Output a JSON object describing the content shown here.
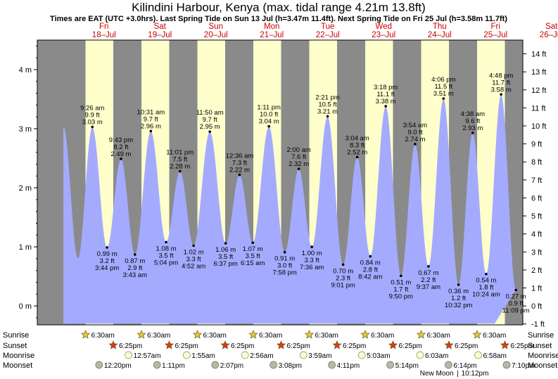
{
  "chart_data": {
    "type": "area",
    "title": "Kilindini Harbour, Kenya (max. tidal range 4.21m 13.8ft)",
    "subtitle": "Times are EAT (UTC +3.0hrs). Last Spring Tide on Sun 13 Jul (h=3.47m 11.4ft). Next Spring Tide on Fri 25 Jul (h=3.58m 11.7ft)",
    "days": [
      {
        "weekday": "Fri",
        "date": "18–Jul"
      },
      {
        "weekday": "Sat",
        "date": "19–Jul"
      },
      {
        "weekday": "Sun",
        "date": "20–Jul"
      },
      {
        "weekday": "Mon",
        "date": "21–Jul"
      },
      {
        "weekday": "Tue",
        "date": "22–Jul"
      },
      {
        "weekday": "Wed",
        "date": "23–Jul"
      },
      {
        "weekday": "Thu",
        "date": "24–Jul"
      },
      {
        "weekday": "Fri",
        "date": "25–Jul"
      },
      {
        "weekday": "Sat",
        "date": "26–Jul"
      }
    ],
    "ylim_m": [
      -0.32,
      4.5
    ],
    "y_left_ticks": [
      {
        "value": 0,
        "label": "0 m"
      },
      {
        "value": 1,
        "label": "1 m"
      },
      {
        "value": 2,
        "label": "2 m"
      },
      {
        "value": 3,
        "label": "3 m"
      },
      {
        "value": 4,
        "label": "4 m"
      }
    ],
    "y_right_ticks": [
      {
        "value": -1,
        "label": "-1 ft"
      },
      {
        "value": 0,
        "label": "0 ft"
      },
      {
        "value": 1,
        "label": "1 ft"
      },
      {
        "value": 2,
        "label": "2 ft"
      },
      {
        "value": 3,
        "label": "3 ft"
      },
      {
        "value": 4,
        "label": "4 ft"
      },
      {
        "value": 5,
        "label": "5 ft"
      },
      {
        "value": 6,
        "label": "6 ft"
      },
      {
        "value": 7,
        "label": "7 ft"
      },
      {
        "value": 8,
        "label": "8 ft"
      },
      {
        "value": 9,
        "label": "9 ft"
      },
      {
        "value": 10,
        "label": "10 ft"
      },
      {
        "value": 11,
        "label": "11 ft"
      },
      {
        "value": 12,
        "label": "12 ft"
      },
      {
        "value": 13,
        "label": "13 ft"
      },
      {
        "value": 14,
        "label": "14 ft"
      }
    ],
    "tides": [
      {
        "day": 0,
        "hour": 9.43,
        "type": "high",
        "time": "9:26 am",
        "ft": "9.9 ft",
        "m": 3.03,
        "m_label": "3.03 m"
      },
      {
        "day": 0,
        "hour": 15.73,
        "type": "low",
        "time": "3:44 pm",
        "ft": "3.2 ft",
        "m": 0.99,
        "m_label": "0.99 m"
      },
      {
        "day": 0,
        "hour": 21.72,
        "type": "high",
        "time": "9:43 pm",
        "ft": "8.2 ft",
        "m": 2.49,
        "m_label": "2.49 m"
      },
      {
        "day": 1,
        "hour": 3.72,
        "type": "low",
        "time": "3:43 am",
        "ft": "2.9 ft",
        "m": 0.87,
        "m_label": "0.87 m"
      },
      {
        "day": 1,
        "hour": 10.52,
        "type": "high",
        "time": "10:31 am",
        "ft": "9.7 ft",
        "m": 2.96,
        "m_label": "2.96 m"
      },
      {
        "day": 1,
        "hour": 17.07,
        "type": "low",
        "time": "5:04 pm",
        "ft": "3.5 ft",
        "m": 1.08,
        "m_label": "1.08 m"
      },
      {
        "day": 1,
        "hour": 23.02,
        "type": "high",
        "time": "11:01 pm",
        "ft": "7.5 ft",
        "m": 2.28,
        "m_label": "2.28 m"
      },
      {
        "day": 2,
        "hour": 4.87,
        "type": "low",
        "time": "4:52 am",
        "ft": "3.3 ft",
        "m": 1.02,
        "m_label": "1.02 m"
      },
      {
        "day": 2,
        "hour": 11.83,
        "type": "high",
        "time": "11:50 am",
        "ft": "9.7 ft",
        "m": 2.95,
        "m_label": "2.95 m"
      },
      {
        "day": 2,
        "hour": 18.62,
        "type": "low",
        "time": "6:37 pm",
        "ft": "3.5 ft",
        "m": 1.06,
        "m_label": "1.06 m"
      },
      {
        "day": 3,
        "hour": 0.6,
        "type": "high",
        "time": "12:36 am",
        "ft": "7.3 ft",
        "m": 2.22,
        "m_label": "2.22 m"
      },
      {
        "day": 3,
        "hour": 6.25,
        "type": "low",
        "time": "6:15 am",
        "ft": "3.5 ft",
        "m": 1.07,
        "m_label": "1.07 m"
      },
      {
        "day": 3,
        "hour": 13.18,
        "type": "high",
        "time": "1:11 pm",
        "ft": "10.0 ft",
        "m": 3.04,
        "m_label": "3.04 m"
      },
      {
        "day": 3,
        "hour": 19.97,
        "type": "low",
        "time": "7:58 pm",
        "ft": "3.0 ft",
        "m": 0.91,
        "m_label": "0.91 m"
      },
      {
        "day": 4,
        "hour": 2.0,
        "type": "high",
        "time": "2:00 am",
        "ft": "7.6 ft",
        "m": 2.32,
        "m_label": "2.32 m"
      },
      {
        "day": 4,
        "hour": 7.6,
        "type": "low",
        "time": "7:36 am",
        "ft": "3.3 ft",
        "m": 1.0,
        "m_label": "1.00 m"
      },
      {
        "day": 4,
        "hour": 14.35,
        "type": "high",
        "time": "2:21 pm",
        "ft": "10.5 ft",
        "m": 3.21,
        "m_label": "3.21 m"
      },
      {
        "day": 4,
        "hour": 21.02,
        "type": "low",
        "time": "9:01 pm",
        "ft": "2.3 ft",
        "m": 0.7,
        "m_label": "0.70 m"
      },
      {
        "day": 5,
        "hour": 3.07,
        "type": "high",
        "time": "3:04 am",
        "ft": "8.3 ft",
        "m": 2.52,
        "m_label": "2.52 m"
      },
      {
        "day": 5,
        "hour": 8.7,
        "type": "low",
        "time": "8:42 am",
        "ft": "2.8 ft",
        "m": 0.84,
        "m_label": "0.84 m"
      },
      {
        "day": 5,
        "hour": 15.3,
        "type": "high",
        "time": "3:18 pm",
        "ft": "11.1 ft",
        "m": 3.38,
        "m_label": "3.38 m"
      },
      {
        "day": 5,
        "hour": 21.83,
        "type": "low",
        "time": "9:50 pm",
        "ft": "1.7 ft",
        "m": 0.51,
        "m_label": "0.51 m"
      },
      {
        "day": 6,
        "hour": 3.9,
        "type": "high",
        "time": "3:54 am",
        "ft": "9.0 ft",
        "m": 2.74,
        "m_label": "2.74 m"
      },
      {
        "day": 6,
        "hour": 9.62,
        "type": "low",
        "time": "9:37 am",
        "ft": "2.2 ft",
        "m": 0.67,
        "m_label": "0.67 m"
      },
      {
        "day": 6,
        "hour": 16.1,
        "type": "high",
        "time": "4:06 pm",
        "ft": "11.5 ft",
        "m": 3.51,
        "m_label": "3.51 m"
      },
      {
        "day": 6,
        "hour": 22.53,
        "type": "low",
        "time": "10:32 pm",
        "ft": "1.2 ft",
        "m": 0.36,
        "m_label": "0.36 m"
      },
      {
        "day": 7,
        "hour": 4.63,
        "type": "high",
        "time": "4:38 am",
        "ft": "9.6 ft",
        "m": 2.93,
        "m_label": "2.93 m"
      },
      {
        "day": 7,
        "hour": 10.4,
        "type": "low",
        "time": "10:24 am",
        "ft": "1.8 ft",
        "m": 0.54,
        "m_label": "0.54 m"
      },
      {
        "day": 7,
        "hour": 16.8,
        "type": "high",
        "time": "4:48 pm",
        "ft": "11.7 ft",
        "m": 3.58,
        "m_label": "3.58 m"
      },
      {
        "day": 7,
        "hour": 23.15,
        "type": "low",
        "time": "11:09 pm",
        "ft": "0.9 ft",
        "m": 0.27,
        "m_label": "0.27 m"
      }
    ],
    "rows": {
      "sunrise": {
        "label": "Sunrise",
        "times": [
          "6:30am",
          "6:30am",
          "6:30am",
          "6:30am",
          "6:30am",
          "6:30am",
          "6:30am",
          "6:30am"
        ],
        "color": "#e8c832"
      },
      "sunset": {
        "label": "Sunset",
        "times": [
          "6:25pm",
          "6:25pm",
          "6:25pm",
          "6:25pm",
          "6:25pm",
          "6:25pm",
          "6:25pm",
          "6:25pm"
        ],
        "color": "#d83a1e"
      },
      "moonrise": {
        "label": "Moonrise",
        "times": [
          "12:57am",
          "1:55am",
          "2:56am",
          "3:59am",
          "5:03am",
          "6:03am",
          "6:58am"
        ],
        "color": "#fbfbd0"
      },
      "moonset": {
        "label": "Moonset",
        "times": [
          "12:20pm",
          "1:11pm",
          "2:07pm",
          "3:08pm",
          "4:11pm",
          "5:14pm",
          "6:14pm",
          "7:10pm"
        ],
        "color": "#b8b8a8"
      }
    },
    "moon_phase": {
      "label": "New Moon",
      "time": "10:12pm",
      "day": 6
    },
    "colors": {
      "night": "#8a8a8a",
      "day": "#ffffcc",
      "water": "#a4abff",
      "border": "#000000",
      "day_label": "#cc0000"
    },
    "grid": false
  }
}
